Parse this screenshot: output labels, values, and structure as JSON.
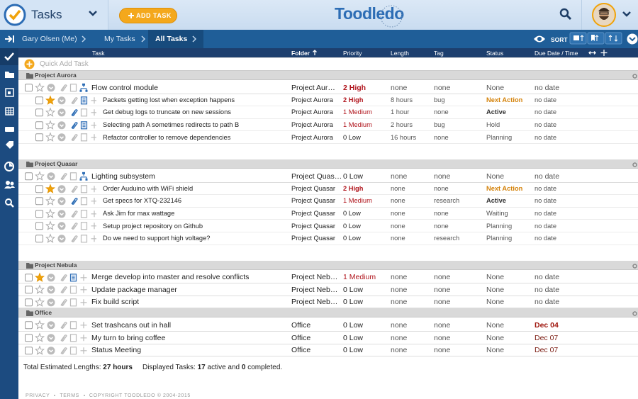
{
  "header": {
    "app_name": "Tasks",
    "add_button": "ADD TASK",
    "logo": "Toodledo"
  },
  "breadcrumb": {
    "items": [
      "Gary Olsen (Me)",
      "My Tasks",
      "All Tasks"
    ],
    "sort_label": "SORT"
  },
  "columns": [
    "Task",
    "Folder",
    "Priority",
    "Length",
    "Tag",
    "Status",
    "Due Date / Time"
  ],
  "quick_add": "Quick Add Task",
  "groups": [
    {
      "name": "Project Aurora",
      "tasks": [
        {
          "name": "Flow control module",
          "folder": "Project Aur…",
          "priority": "2 High",
          "length": "none",
          "tag": "none",
          "status": "None",
          "due": "no date",
          "has_subtasks": true,
          "style": {
            "priority": {
              "color": "#b0141c",
              "bold": true
            }
          }
        },
        {
          "name": "Packets getting lost when exception happens",
          "folder": "Project Aurora",
          "priority": "2 High",
          "length": "8 hours",
          "tag": "bug",
          "status": "Next Action",
          "due": "no date",
          "subtask": true,
          "starred": true,
          "note": true,
          "style": {
            "priority": {
              "color": "#b0141c",
              "bold": true
            },
            "status": {
              "color": "#d4820a",
              "bold": true
            }
          }
        },
        {
          "name": "Get debug logs to truncate on new sessions",
          "folder": "Project Aurora",
          "priority": "1 Medium",
          "length": "1 hour",
          "tag": "none",
          "status": "Active",
          "due": "no date",
          "subtask": true,
          "attachment": true,
          "style": {
            "priority": {
              "color": "#b0141c",
              "bold": false
            },
            "status": {
              "color": "#333333",
              "bold": true
            }
          }
        },
        {
          "name": "Selecting path A sometimes redirects to path B",
          "folder": "Project Aurora",
          "priority": "1 Medium",
          "length": "2 hours",
          "tag": "bug",
          "status": "Hold",
          "due": "no date",
          "subtask": true,
          "attachment": true,
          "note": true,
          "style": {
            "priority": {
              "color": "#b0141c",
              "bold": false
            }
          }
        },
        {
          "name": "Refactor controller to remove dependencies",
          "folder": "Project Aurora",
          "priority": "0 Low",
          "length": "16 hours",
          "tag": "none",
          "status": "Planning",
          "due": "no date",
          "subtask": true
        }
      ]
    },
    {
      "name": "Project Quasar",
      "tasks": [
        {
          "name": "Lighting subsystem",
          "folder": "Project Quas…",
          "priority": "0 Low",
          "length": "none",
          "tag": "none",
          "status": "None",
          "due": "no date",
          "has_subtasks": true
        },
        {
          "name": "Order Auduino with WiFi shield",
          "folder": "Project Quasar",
          "priority": "2 High",
          "length": "none",
          "tag": "none",
          "status": "Next Action",
          "due": "no date",
          "subtask": true,
          "starred": true,
          "style": {
            "priority": {
              "color": "#b0141c",
              "bold": true
            },
            "status": {
              "color": "#d4820a",
              "bold": true
            }
          }
        },
        {
          "name": "Get specs for XTQ-232146",
          "folder": "Project Quasar",
          "priority": "1 Medium",
          "length": "none",
          "tag": "research",
          "status": "Active",
          "due": "no date",
          "subtask": true,
          "attachment": true,
          "style": {
            "priority": {
              "color": "#b0141c",
              "bold": false
            },
            "status": {
              "color": "#333333",
              "bold": true
            }
          }
        },
        {
          "name": "Ask Jim for max wattage",
          "folder": "Project Quasar",
          "priority": "0 Low",
          "length": "none",
          "tag": "none",
          "status": "Waiting",
          "due": "no date",
          "subtask": true
        },
        {
          "name": "Setup project repository on Github",
          "folder": "Project Quasar",
          "priority": "0 Low",
          "length": "none",
          "tag": "none",
          "status": "Planning",
          "due": "no date",
          "subtask": true
        },
        {
          "name": "Do we need to support high voltage?",
          "folder": "Project Quasar",
          "priority": "0 Low",
          "length": "none",
          "tag": "research",
          "status": "Planning",
          "due": "no date",
          "subtask": true
        }
      ]
    },
    {
      "name": "Project Nebula",
      "tasks": [
        {
          "name": "Merge develop into master and resolve conflicts",
          "folder": "Project Neb…",
          "priority": "1 Medium",
          "length": "none",
          "tag": "none",
          "status": "None",
          "due": "no date",
          "starred": true,
          "note": true,
          "style": {
            "priority": {
              "color": "#b0141c",
              "bold": false
            }
          }
        },
        {
          "name": "Update package manager",
          "folder": "Project Neb…",
          "priority": "0 Low",
          "length": "none",
          "tag": "none",
          "status": "None",
          "due": "no date"
        },
        {
          "name": "Fix build script",
          "folder": "Project Neb…",
          "priority": "0 Low",
          "length": "none",
          "tag": "none",
          "status": "None",
          "due": "no date"
        }
      ]
    },
    {
      "name": "Office",
      "tasks": [
        {
          "name": "Set trashcans out in hall",
          "folder": "Office",
          "priority": "0 Low",
          "length": "none",
          "tag": "none",
          "status": "None",
          "due": "Dec 04",
          "style": {
            "due": {
              "color": "#a0180f",
              "bold": true
            }
          }
        },
        {
          "name": "My turn to bring coffee",
          "folder": "Office",
          "priority": "0 Low",
          "length": "none",
          "tag": "none",
          "status": "None",
          "due": "Dec 07",
          "style": {
            "due": {
              "color": "#7a1a10",
              "bold": false
            }
          }
        },
        {
          "name": "Status Meeting",
          "folder": "Office",
          "priority": "0 Low",
          "length": "none",
          "tag": "none",
          "status": "None",
          "due": "Dec 07",
          "style": {
            "due": {
              "color": "#7a1a10",
              "bold": false
            }
          }
        }
      ]
    }
  ],
  "summary": {
    "total_label": "Total Estimated Lengths:",
    "total_value": "27 hours",
    "displayed_label": "Displayed Tasks:",
    "active_count": 17,
    "active_label": "active and",
    "completed_count": 0,
    "completed_label": "completed."
  },
  "footer": [
    "PRIVACY",
    "TERMS",
    "COPYRIGHT TOODLEDO © 2004-2015"
  ]
}
